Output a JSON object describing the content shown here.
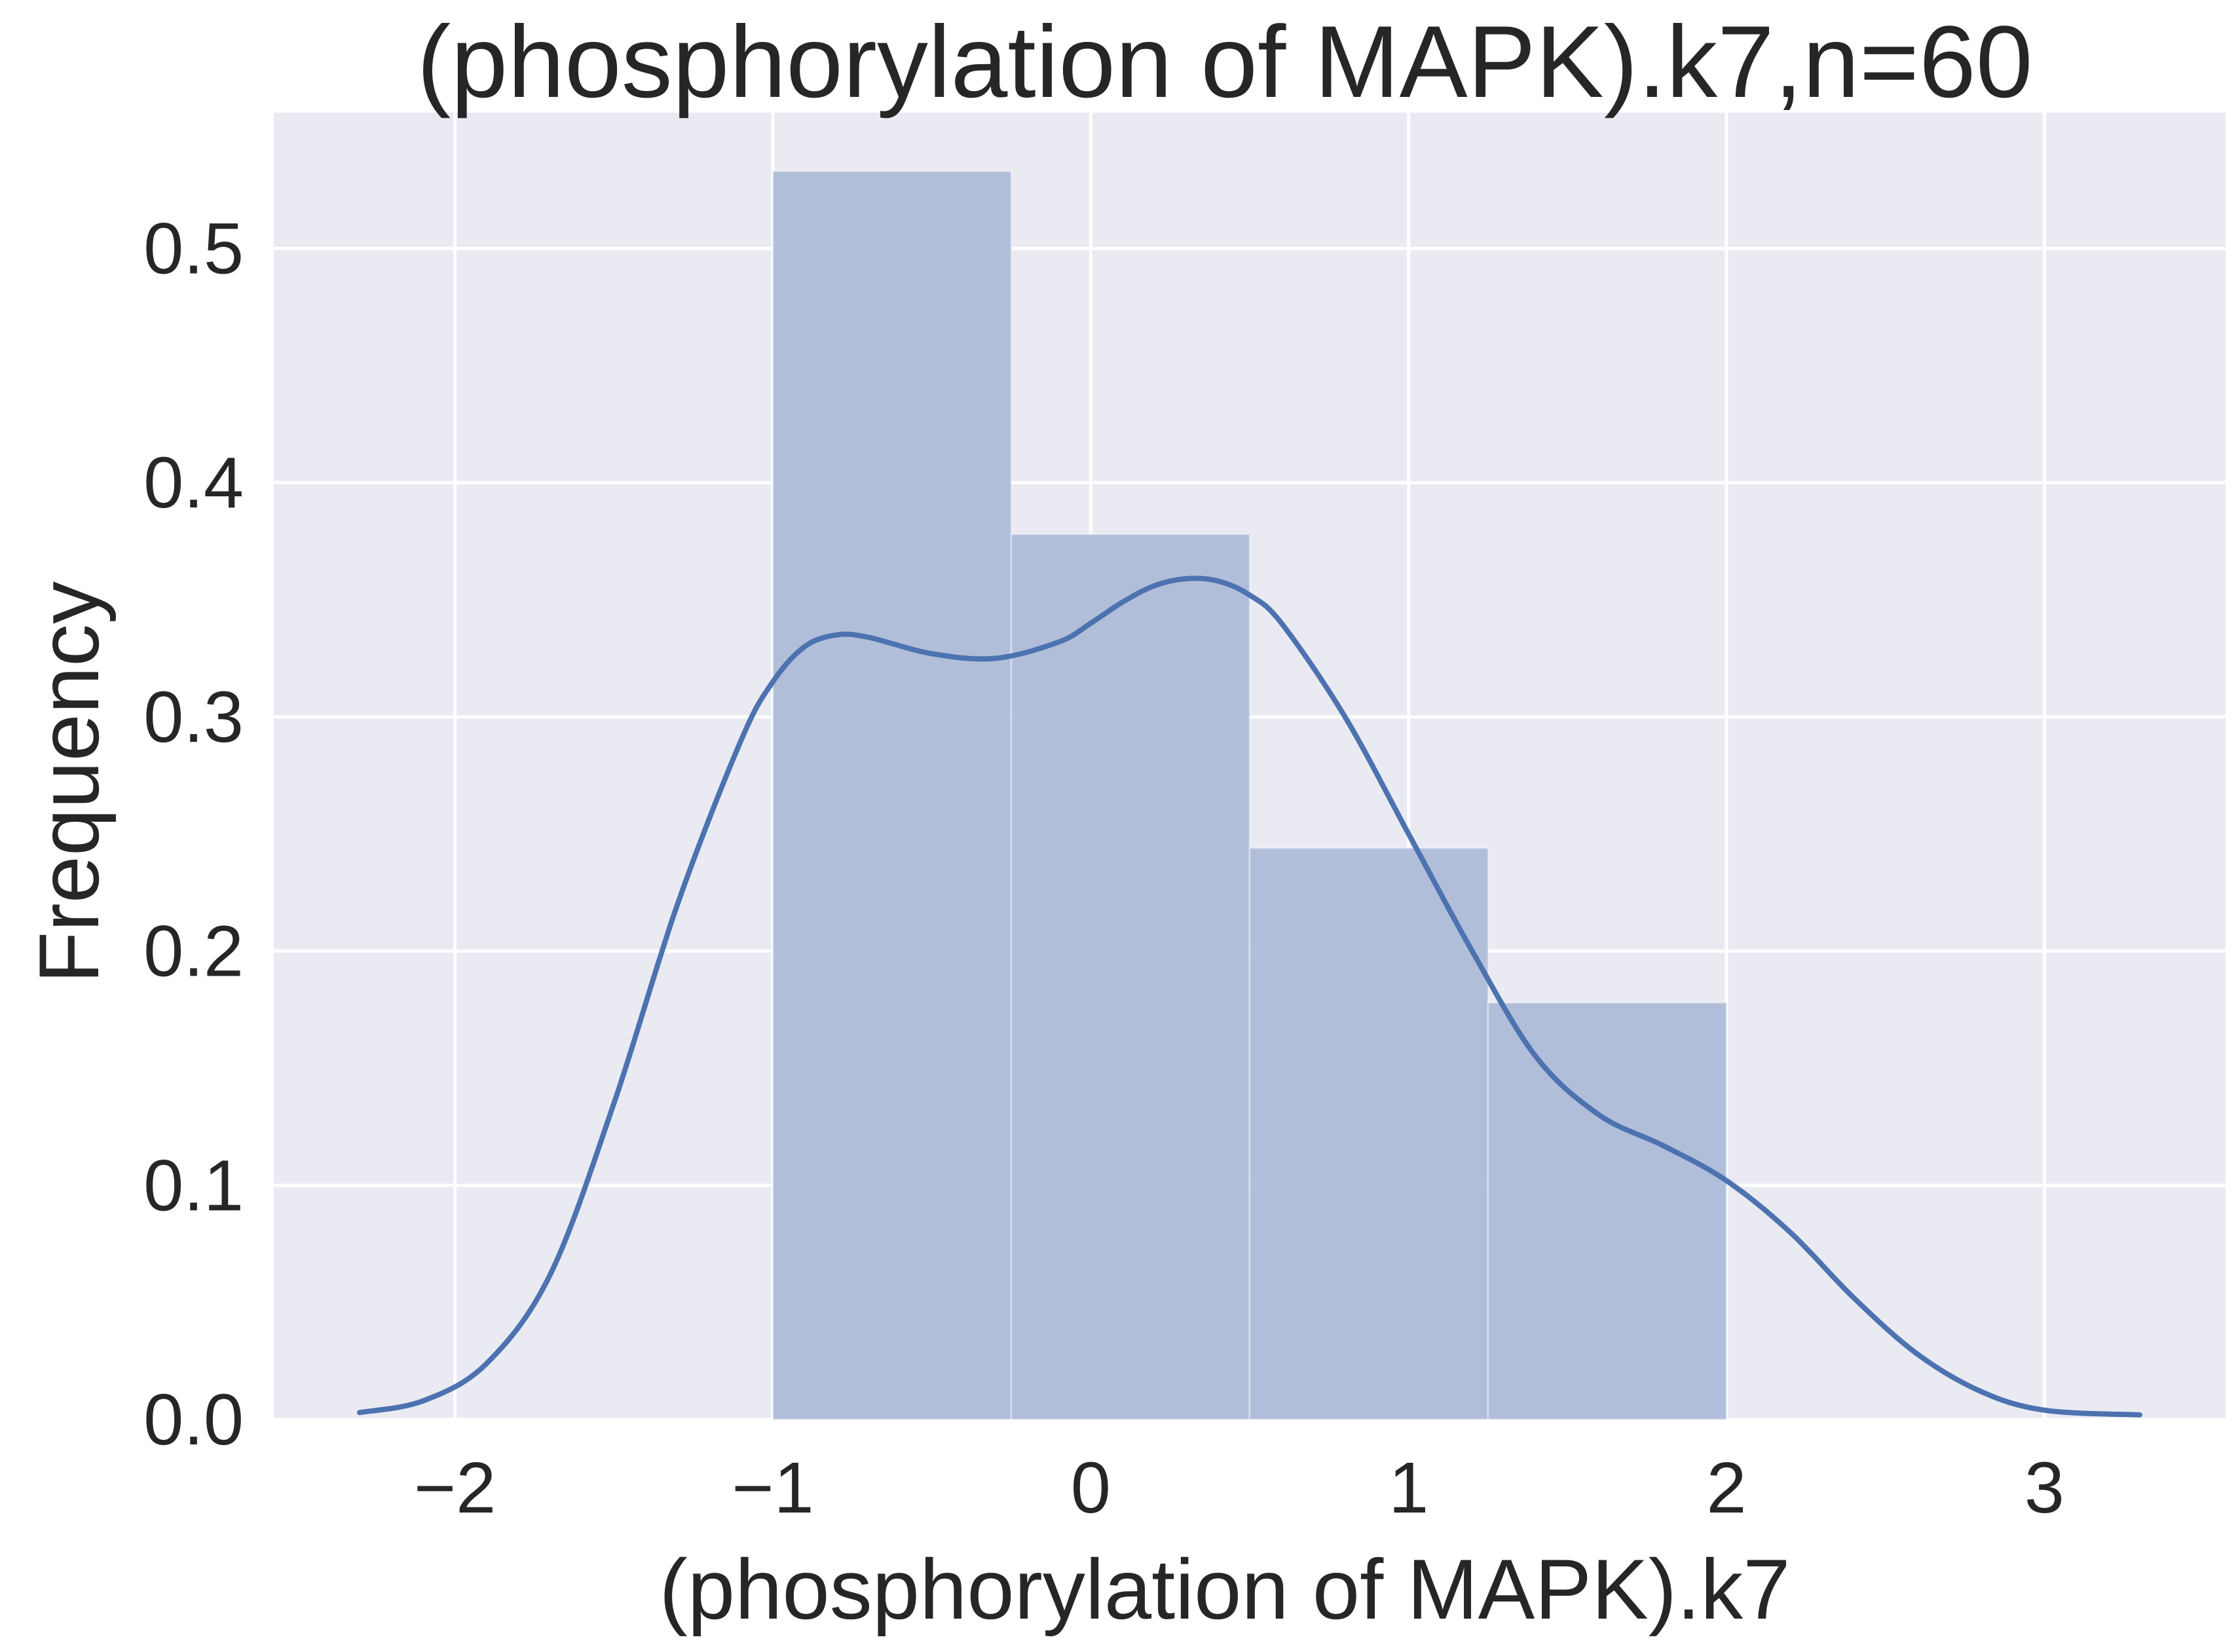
{
  "chart_data": {
    "type": "bar",
    "title": "(phosphorylation of MAPK).k7,n=60",
    "xlabel": "(phosphorylation of MAPK).k7",
    "ylabel": "Frequency",
    "xlim": [
      -2.57,
      3.57
    ],
    "ylim": [
      0,
      0.558
    ],
    "xticks": [
      -2,
      -1,
      0,
      1,
      2,
      3
    ],
    "xtick_labels": [
      "−2",
      "−1",
      "0",
      "1",
      "2",
      "3"
    ],
    "yticks": [
      0.0,
      0.1,
      0.2,
      0.3,
      0.4,
      0.5
    ],
    "ytick_labels": [
      "0.0",
      "0.1",
      "0.2",
      "0.3",
      "0.4",
      "0.5"
    ],
    "grid": true,
    "histogram": {
      "bin_edges": [
        -1.0,
        -0.25,
        0.5,
        1.25,
        2.0
      ],
      "values": [
        0.533,
        0.378,
        0.244,
        0.178
      ]
    },
    "kde": {
      "x": [
        -2.3,
        -2.1,
        -1.9,
        -1.7,
        -1.5,
        -1.3,
        -1.1,
        -1.0,
        -0.9,
        -0.8,
        -0.7,
        -0.5,
        -0.3,
        -0.1,
        0.0,
        0.1,
        0.2,
        0.3,
        0.4,
        0.5,
        0.6,
        0.8,
        1.0,
        1.2,
        1.4,
        1.6,
        1.8,
        2.0,
        2.2,
        2.4,
        2.6,
        2.8,
        3.0,
        3.3
      ],
      "y": [
        0.003,
        0.008,
        0.024,
        0.062,
        0.135,
        0.22,
        0.29,
        0.315,
        0.33,
        0.335,
        0.334,
        0.327,
        0.325,
        0.332,
        0.34,
        0.349,
        0.356,
        0.359,
        0.358,
        0.352,
        0.34,
        0.3,
        0.25,
        0.2,
        0.155,
        0.13,
        0.117,
        0.102,
        0.08,
        0.052,
        0.028,
        0.012,
        0.004,
        0.002
      ]
    },
    "colors": {
      "background": "#eaeaf2",
      "grid": "#ffffff",
      "bar": "#abbad7",
      "line": "#4c72b0"
    }
  }
}
